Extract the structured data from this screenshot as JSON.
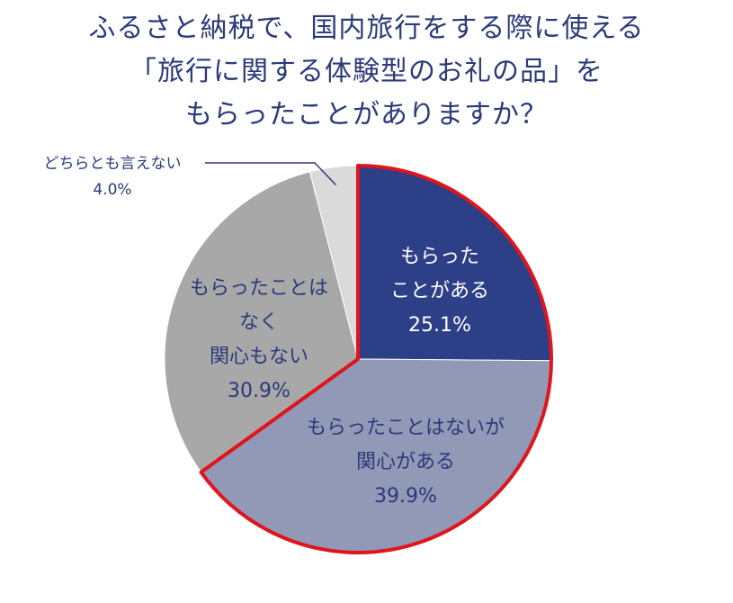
{
  "title_lines": [
    "ふるさと納税で、国内旅行をする際に使える",
    "「旅行に関する体験型のお礼の品」を",
    "もらったことがありますか？"
  ],
  "chart_data": {
    "type": "pie",
    "title": "ふるさと納税で、国内旅行をする際に使える「旅行に関する体験型のお礼の品」をもらったことがありますか？",
    "slices": [
      {
        "label_lines": [
          "もらった",
          "ことがある"
        ],
        "value": 25.1,
        "value_label": "25.1%",
        "color": "#2d3f87",
        "text_color": "#ffffff"
      },
      {
        "label_lines": [
          "もらったことはないが",
          "関心がある"
        ],
        "value": 39.9,
        "value_label": "39.9%",
        "color": "#9199b6",
        "text_color": "#2b3a7a"
      },
      {
        "label_lines": [
          "もらったことは",
          "なく",
          "関心もない"
        ],
        "value": 30.9,
        "value_label": "30.9%",
        "color": "#a8a8a8",
        "text_color": "#2b3a7a"
      },
      {
        "label_lines": [
          "どちらとも言えない"
        ],
        "value": 4.0,
        "value_label": "4.0%",
        "color": "#dadada",
        "text_color": "#2b3a7a"
      }
    ],
    "highlight_color": "#e0151c"
  }
}
